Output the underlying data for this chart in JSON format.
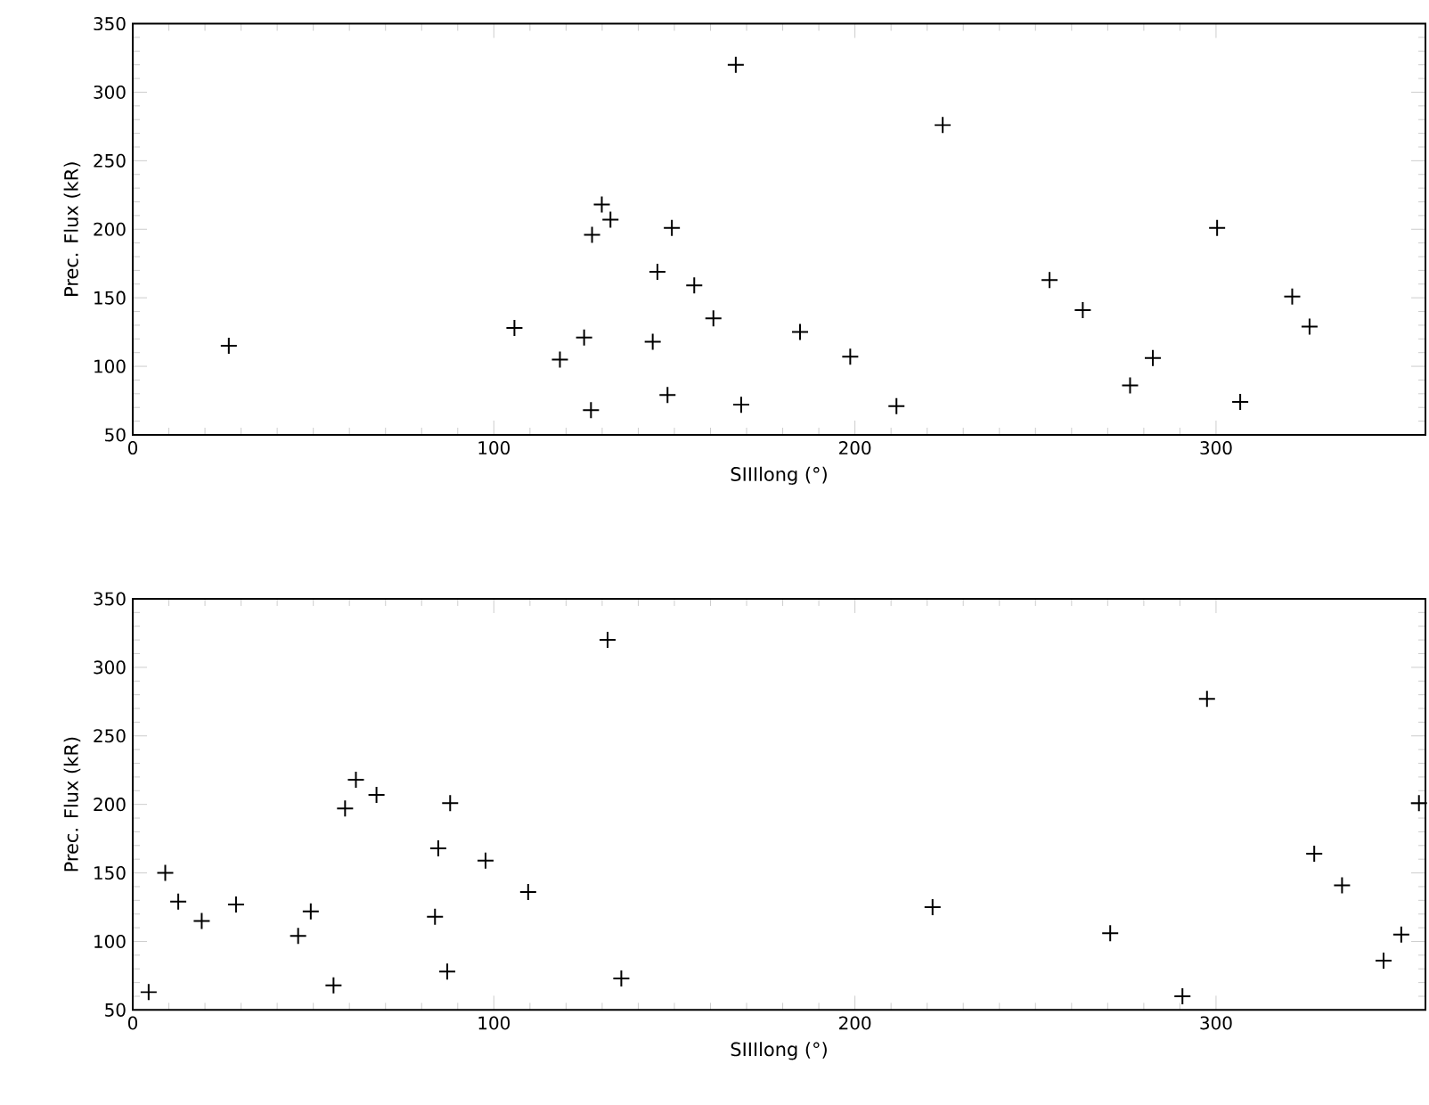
{
  "chart_data": [
    {
      "type": "scatter",
      "xlabel": "SIIIlong (°)",
      "ylabel": "Prec. Flux (kR)",
      "marker": "cross",
      "color": "#000000",
      "xlim": [
        0,
        358
      ],
      "ylim": [
        50,
        350
      ],
      "xticks": [
        0,
        100,
        200,
        300
      ],
      "yticks": [
        50,
        100,
        150,
        200,
        250,
        300,
        350
      ],
      "x": [
        26.6,
        105.7,
        118.3,
        125.0,
        126.9,
        127.2,
        129.9,
        132.3,
        144.0,
        145.3,
        148.1,
        149.3,
        155.5,
        160.8,
        167.0,
        168.5,
        184.8,
        198.7,
        211.5,
        224.3,
        253.9,
        263.1,
        276.2,
        282.5,
        300.3,
        306.7,
        321.1,
        325.9
      ],
      "values": [
        115,
        128,
        105,
        121,
        68,
        196,
        218,
        207,
        118,
        169,
        79,
        201,
        159,
        135,
        320,
        72,
        125,
        107,
        71,
        276,
        163,
        141,
        86,
        106,
        201,
        74,
        151,
        129
      ]
    },
    {
      "type": "scatter",
      "xlabel": "SIIIlong (°)",
      "ylabel": "Prec. Flux (kR)",
      "marker": "cross",
      "color": "#000000",
      "xlim": [
        0,
        358
      ],
      "ylim": [
        50,
        350
      ],
      "xticks": [
        0,
        100,
        200,
        300
      ],
      "yticks": [
        50,
        100,
        150,
        200,
        250,
        300,
        350
      ],
      "x": [
        4.4,
        9.0,
        12.6,
        19.1,
        28.6,
        45.8,
        49.3,
        55.6,
        58.8,
        61.8,
        67.5,
        83.7,
        84.6,
        87.1,
        87.9,
        97.7,
        109.5,
        131.5,
        135.3,
        221.5,
        270.7,
        290.7,
        297.5,
        327.2,
        334.9,
        346.4,
        351.3,
        356.2
      ],
      "values": [
        63,
        150,
        129,
        115,
        127,
        104,
        122,
        68,
        197,
        218,
        207,
        118,
        168,
        78,
        201,
        159,
        136,
        320,
        73,
        125,
        106,
        60,
        277,
        164,
        141,
        86,
        105,
        201
      ]
    }
  ]
}
